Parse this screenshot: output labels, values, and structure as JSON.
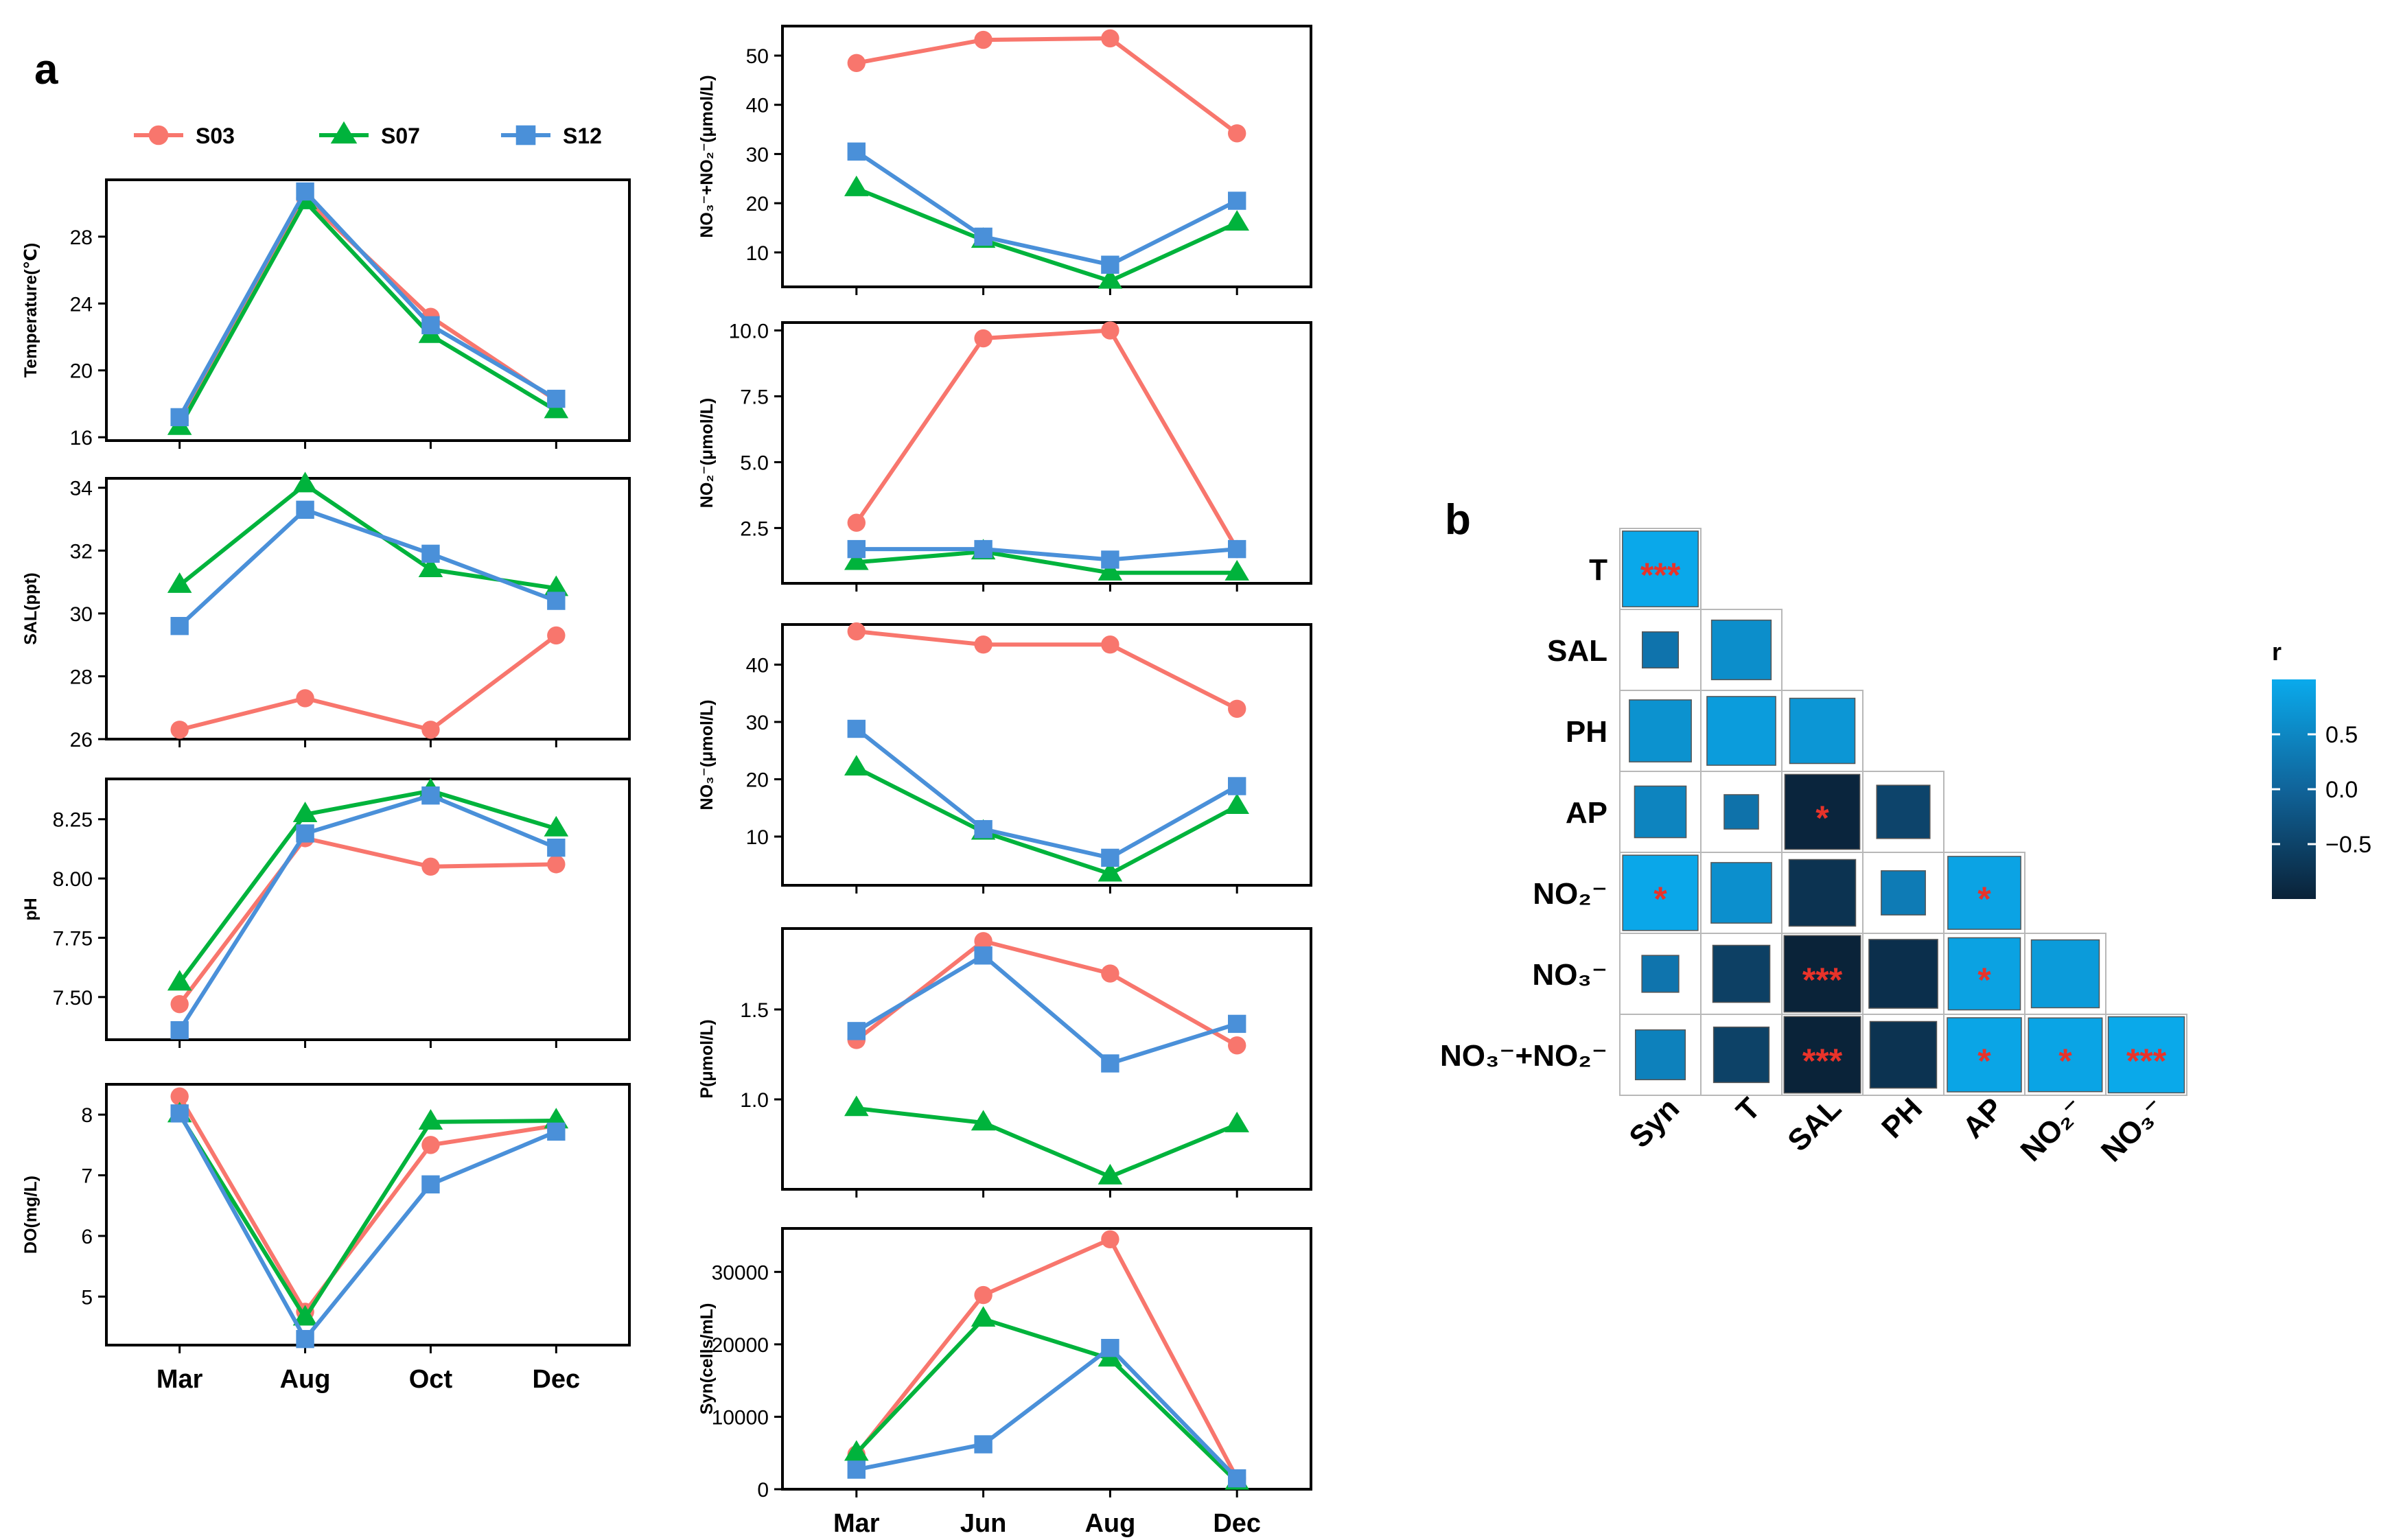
{
  "panel_labels": {
    "a": "a",
    "b": "b"
  },
  "legend": [
    {
      "name": "S03",
      "color": "#F8766D",
      "marker": "circle"
    },
    {
      "name": "S07",
      "color": "#00B33C",
      "marker": "triangle"
    },
    {
      "name": "S12",
      "color": "#4A90D9",
      "marker": "square"
    }
  ],
  "chart_data": [
    {
      "type": "line",
      "id": "temperature",
      "ylabel": "Temperature(℃)",
      "categories": [
        "Mar",
        "Aug",
        "Oct",
        "Dec"
      ],
      "ylim": [
        15.8,
        31.4
      ],
      "yticks": [
        16,
        20,
        24,
        28
      ],
      "yticklabels": [
        "16",
        "20",
        "24",
        "28"
      ],
      "show_xticklabels": false,
      "series": [
        {
          "name": "S03",
          "values": [
            17.0,
            30.3,
            23.2,
            18.2
          ]
        },
        {
          "name": "S07",
          "values": [
            16.6,
            30.1,
            22.1,
            17.6
          ]
        },
        {
          "name": "S12",
          "values": [
            17.2,
            30.7,
            22.7,
            18.3
          ]
        }
      ]
    },
    {
      "type": "line",
      "id": "salinity",
      "ylabel": "SAL(ppt)",
      "categories": [
        "Mar",
        "Aug",
        "Oct",
        "Dec"
      ],
      "ylim": [
        26,
        34.3
      ],
      "yticks": [
        26,
        28,
        30,
        32,
        34
      ],
      "yticklabels": [
        "26",
        "28",
        "30",
        "32",
        "34"
      ],
      "show_xticklabels": false,
      "series": [
        {
          "name": "S03",
          "values": [
            26.3,
            27.3,
            26.3,
            29.3
          ]
        },
        {
          "name": "S07",
          "values": [
            30.9,
            34.1,
            31.4,
            30.8
          ]
        },
        {
          "name": "S12",
          "values": [
            29.6,
            33.3,
            31.9,
            30.4
          ]
        }
      ]
    },
    {
      "type": "line",
      "id": "ph",
      "ylabel": "pH",
      "categories": [
        "Mar",
        "Aug",
        "Oct",
        "Dec"
      ],
      "ylim": [
        7.32,
        8.42
      ],
      "yticks": [
        7.5,
        7.75,
        8.0,
        8.25
      ],
      "yticklabels": [
        "7.50",
        "7.75",
        "8.00",
        "8.25"
      ],
      "show_xticklabels": false,
      "series": [
        {
          "name": "S03",
          "values": [
            7.47,
            8.17,
            8.05,
            8.06
          ]
        },
        {
          "name": "S07",
          "values": [
            7.56,
            8.27,
            8.37,
            8.21
          ]
        },
        {
          "name": "S12",
          "values": [
            7.36,
            8.19,
            8.35,
            8.13
          ]
        }
      ]
    },
    {
      "type": "line",
      "id": "do",
      "ylabel": "DO(mg/L)",
      "categories": [
        "Mar",
        "Aug",
        "Oct",
        "Dec"
      ],
      "ylim": [
        4.2,
        8.5
      ],
      "yticks": [
        5,
        6,
        7,
        8
      ],
      "yticklabels": [
        "5",
        "6",
        "7",
        "8"
      ],
      "show_xticklabels": true,
      "series": [
        {
          "name": "S03",
          "values": [
            8.3,
            4.75,
            7.5,
            7.82
          ]
        },
        {
          "name": "S07",
          "values": [
            8.0,
            4.65,
            7.88,
            7.9
          ]
        },
        {
          "name": "S12",
          "values": [
            8.02,
            4.3,
            6.85,
            7.72
          ]
        }
      ]
    },
    {
      "type": "line",
      "id": "no3_no2",
      "ylabel": "NO₃⁻+NO₂⁻(μmol/L)",
      "categories": [
        "Mar",
        "Jun",
        "Aug",
        "Dec"
      ],
      "ylim": [
        3,
        56
      ],
      "yticks": [
        10,
        20,
        30,
        40,
        50
      ],
      "yticklabels": [
        "10",
        "20",
        "30",
        "40",
        "50"
      ],
      "show_xticklabels": false,
      "series": [
        {
          "name": "S03",
          "values": [
            48.5,
            53.2,
            53.5,
            34.2
          ]
        },
        {
          "name": "S07",
          "values": [
            23.0,
            12.5,
            4.2,
            16.0
          ]
        },
        {
          "name": "S12",
          "values": [
            30.5,
            13.2,
            7.5,
            20.5
          ]
        }
      ]
    },
    {
      "type": "line",
      "id": "no2",
      "ylabel": "NO₂⁻(μmol/L)",
      "categories": [
        "Mar",
        "Jun",
        "Aug",
        "Dec"
      ],
      "ylim": [
        0.4,
        10.3
      ],
      "yticks": [
        2.5,
        5.0,
        7.5,
        10.0
      ],
      "yticklabels": [
        "2.5",
        "5.0",
        "7.5",
        "10.0"
      ],
      "show_xticklabels": false,
      "series": [
        {
          "name": "S03",
          "values": [
            2.7,
            9.7,
            10.0,
            1.7
          ]
        },
        {
          "name": "S07",
          "values": [
            1.2,
            1.6,
            0.8,
            0.8
          ]
        },
        {
          "name": "S12",
          "values": [
            1.7,
            1.7,
            1.3,
            1.7
          ]
        }
      ]
    },
    {
      "type": "line",
      "id": "no3",
      "ylabel": "NO₃⁻(μmol/L)",
      "categories": [
        "Mar",
        "Jun",
        "Aug",
        "Dec"
      ],
      "ylim": [
        1.5,
        47
      ],
      "yticks": [
        10,
        20,
        30,
        40
      ],
      "yticklabels": [
        "10",
        "20",
        "30",
        "40"
      ],
      "show_xticklabels": false,
      "series": [
        {
          "name": "S03",
          "values": [
            45.8,
            43.5,
            43.5,
            32.3
          ]
        },
        {
          "name": "S07",
          "values": [
            22.0,
            10.8,
            3.5,
            15.3
          ]
        },
        {
          "name": "S12",
          "values": [
            28.8,
            11.3,
            6.3,
            18.8
          ]
        }
      ]
    },
    {
      "type": "line",
      "id": "p",
      "ylabel": "P(μmol/L)",
      "categories": [
        "Mar",
        "Jun",
        "Aug",
        "Dec"
      ],
      "ylim": [
        0.5,
        1.95
      ],
      "yticks": [
        1.0,
        1.5
      ],
      "yticklabels": [
        "1.0",
        "1.5"
      ],
      "show_xticklabels": false,
      "series": [
        {
          "name": "S03",
          "values": [
            1.33,
            1.88,
            1.7,
            1.3
          ]
        },
        {
          "name": "S07",
          "values": [
            0.95,
            0.87,
            0.57,
            0.86
          ]
        },
        {
          "name": "S12",
          "values": [
            1.38,
            1.8,
            1.2,
            1.42
          ]
        }
      ]
    },
    {
      "type": "line",
      "id": "syn",
      "ylabel": "Syn(cells/mL)",
      "categories": [
        "Mar",
        "Jun",
        "Aug",
        "Dec"
      ],
      "ylim": [
        0,
        36000
      ],
      "yticks": [
        0,
        10000,
        20000,
        30000
      ],
      "yticklabels": [
        "0",
        "10000",
        "20000",
        "30000"
      ],
      "show_xticklabels": true,
      "series": [
        {
          "name": "S03",
          "values": [
            4800,
            26800,
            34500,
            1500
          ]
        },
        {
          "name": "S07",
          "values": [
            5000,
            23500,
            18000,
            1000
          ]
        },
        {
          "name": "S12",
          "values": [
            2700,
            6200,
            19500,
            1500
          ]
        }
      ]
    },
    {
      "type": "heatmap",
      "id": "correlation",
      "row_labels": [
        "T",
        "SAL",
        "PH",
        "AP",
        "NO₂⁻",
        "NO₃⁻",
        "NO₃⁻+NO₂⁻"
      ],
      "col_labels": [
        "Syn",
        "T",
        "SAL",
        "PH",
        "AP",
        "NO₂⁻",
        "NO₃⁻"
      ],
      "values": [
        [
          0.97
        ],
        [
          0.22,
          0.6
        ],
        [
          0.65,
          0.8,
          0.72
        ],
        [
          0.45,
          0.2,
          -0.95,
          -0.48
        ],
        [
          0.96,
          0.62,
          -0.75,
          0.33,
          0.9
        ],
        [
          0.23,
          -0.55,
          -0.99,
          -0.8,
          0.88,
          0.78
        ],
        [
          0.42,
          -0.52,
          -0.99,
          -0.75,
          0.93,
          0.92,
          0.98
        ]
      ],
      "significance": [
        [
          "***"
        ],
        [
          "",
          ""
        ],
        [
          "",
          "",
          ""
        ],
        [
          "",
          "",
          "*",
          ""
        ],
        [
          "*",
          "",
          "",
          "",
          "*"
        ],
        [
          "",
          "",
          "***",
          "",
          "*",
          ""
        ],
        [
          "",
          "",
          "***",
          "",
          "*",
          "*",
          "***"
        ]
      ],
      "colorbar": {
        "title": "r",
        "range": [
          -1,
          1
        ],
        "ticks": [
          0.5,
          0.0,
          -0.5
        ],
        "ticklabels": [
          "0.5",
          "0.0",
          "−0.5"
        ],
        "color_low": "#0A2238",
        "color_mid": "#10649A",
        "color_high": "#0AAAEC"
      }
    }
  ]
}
